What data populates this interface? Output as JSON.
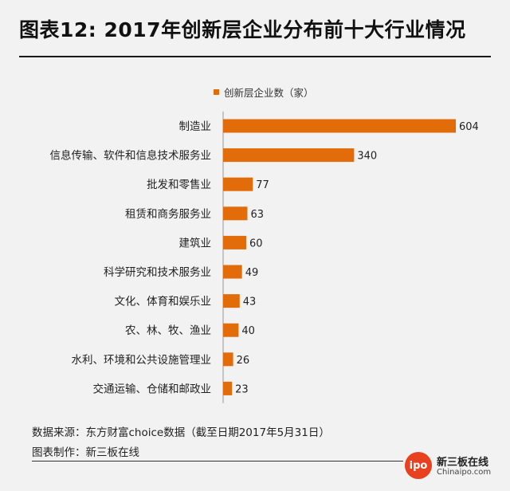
{
  "title": "图表12: 2017年创新层企业分布前十大行业情况",
  "chart_data": {
    "type": "bar",
    "orientation": "horizontal",
    "series": [
      {
        "name": "创新层企业数（家）",
        "color": "#E36C0A",
        "values": [
          604,
          340,
          77,
          63,
          60,
          49,
          43,
          40,
          26,
          23
        ]
      }
    ],
    "categories": [
      "制造业",
      "信息传输、软件和信息技术服务业",
      "批发和零售业",
      "租赁和商务服务业",
      "建筑业",
      "科学研究和技术服务业",
      "文化、体育和娱乐业",
      "农、林、牧、渔业",
      "水利、环境和公共设施管理业",
      "交通运输、仓储和邮政业"
    ],
    "xlim": [
      0,
      604
    ],
    "grid": false,
    "legend_position": "top"
  },
  "source_lines": [
    "数据来源：东方财富choice数据（截至日期2017年5月31日）",
    "图表制作：新三板在线"
  ],
  "logo": {
    "mark": "ipo",
    "name_cn": "新三板在线",
    "name_en": "Chinaipo.com"
  }
}
